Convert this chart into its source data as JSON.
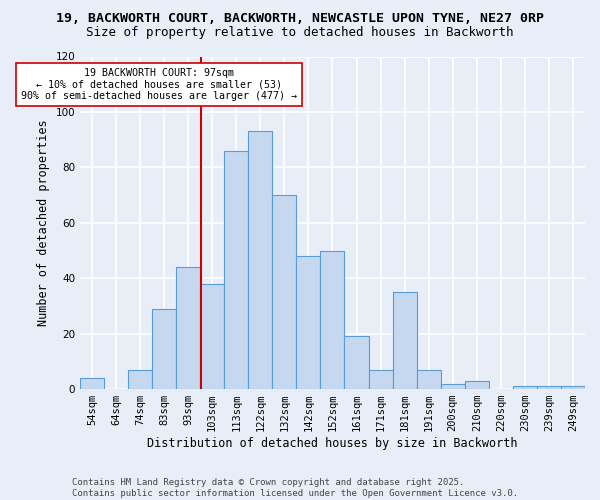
{
  "title_line1": "19, BACKWORTH COURT, BACKWORTH, NEWCASTLE UPON TYNE, NE27 0RP",
  "title_line2": "Size of property relative to detached houses in Backworth",
  "xlabel": "Distribution of detached houses by size in Backworth",
  "ylabel": "Number of detached properties",
  "bar_labels": [
    "54sqm",
    "64sqm",
    "74sqm",
    "83sqm",
    "93sqm",
    "103sqm",
    "113sqm",
    "122sqm",
    "132sqm",
    "142sqm",
    "152sqm",
    "161sqm",
    "171sqm",
    "181sqm",
    "191sqm",
    "200sqm",
    "210sqm",
    "220sqm",
    "230sqm",
    "239sqm",
    "249sqm"
  ],
  "bar_values": [
    4,
    0,
    7,
    29,
    44,
    38,
    86,
    93,
    70,
    48,
    50,
    19,
    7,
    35,
    7,
    2,
    3,
    0,
    1,
    1,
    1
  ],
  "bar_color": "#c5d8f0",
  "bar_edge_color": "#5b9bd5",
  "background_color": "#e8eef7",
  "grid_color": "#ffffff",
  "vline_color": "#cc0000",
  "vline_index": 4.55,
  "annotation_text": "19 BACKWORTH COURT: 97sqm\n← 10% of detached houses are smaller (53)\n90% of semi-detached houses are larger (477) →",
  "annotation_box_color": "#ffffff",
  "annotation_box_edge_color": "#cc0000",
  "ylim": [
    0,
    120
  ],
  "yticks": [
    0,
    20,
    40,
    60,
    80,
    100,
    120
  ],
  "footer_text": "Contains HM Land Registry data © Crown copyright and database right 2025.\nContains public sector information licensed under the Open Government Licence v3.0.",
  "annotation_fontsize": 7.2,
  "title_fontsize1": 9.5,
  "title_fontsize2": 9.0,
  "axis_label_fontsize": 8.5,
  "tick_fontsize": 7.5,
  "footer_fontsize": 6.5
}
